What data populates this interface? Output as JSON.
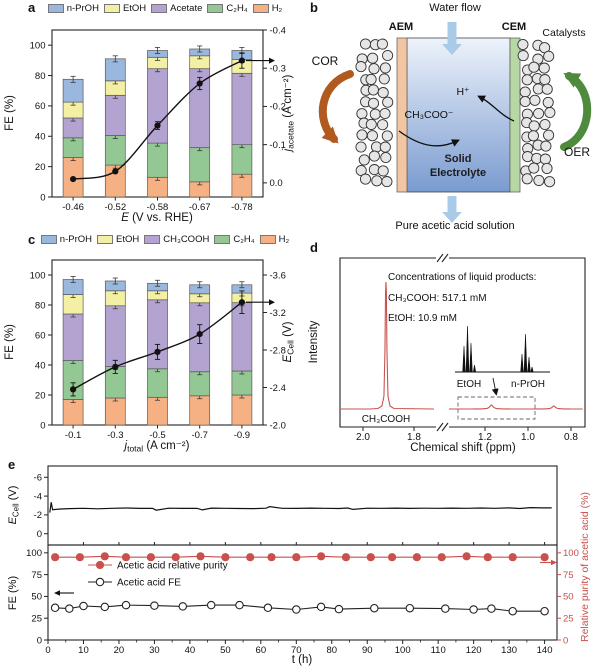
{
  "colors": {
    "n-PrOH": "#9ab7dd",
    "EtOH": "#f3efa4",
    "Acetate": "#b3a3d0",
    "CH₃COOH": "#b3a3d0",
    "C₂H₄": "#93c793",
    "H₂": "#f5b183",
    "line": "#111111",
    "nmr_red": "#c9534f",
    "purity_red": "#c9504c",
    "aem": "#f2c6a2",
    "cem": "#b7d8a5",
    "electrolyte_top": "#eef3fb",
    "electrolyte_bottom": "#7a9bd0",
    "water_arrow": "#a9cbe8",
    "cor_arrow": "#b05a20",
    "oer_arrow": "#4e8b3c",
    "catalyst_fill": "#e6e6e6"
  },
  "panels": {
    "a": {
      "letter": "a"
    },
    "b": {
      "letter": "b",
      "water_flow": "Water flow",
      "aem": "AEM",
      "cem": "CEM",
      "catalysts": "Catalysts",
      "cor": "COR",
      "oer": "OER",
      "h_plus": "H⁺",
      "acetate_ion": "CH₃COO⁻",
      "electrolyte_line1": "Solid",
      "electrolyte_line2": "Electrolyte",
      "bottom_label": "Pure acetic acid solution"
    },
    "c": {
      "letter": "c"
    },
    "d": {
      "letter": "d"
    },
    "e": {
      "letter": "e"
    }
  },
  "chart_data": [
    {
      "id": "panel-a",
      "type": "bar",
      "categories": [
        -0.46,
        -0.52,
        -0.58,
        -0.67,
        -0.78
      ],
      "xlabel_parts": {
        "sym": "E",
        "sub": "",
        "rest": " (V vs. RHE)"
      },
      "ylabel": "FE (%)",
      "ylim": [
        0,
        110
      ],
      "yticks": [
        0,
        20,
        40,
        60,
        80,
        100
      ],
      "legend": [
        "n-PrOH",
        "EtOH",
        "Acetate",
        "C₂H₄",
        "H₂"
      ],
      "series": [
        {
          "name": "H₂",
          "values": [
            26,
            21,
            13,
            10,
            15
          ]
        },
        {
          "name": "C₂H₄",
          "values": [
            13,
            19.5,
            22.5,
            22.5,
            19.5
          ]
        },
        {
          "name": "Acetate",
          "values": [
            13,
            26.5,
            49,
            52,
            47
          ]
        },
        {
          "name": "EtOH",
          "values": [
            10.5,
            9.5,
            7.5,
            8.5,
            9
          ]
        },
        {
          "name": "n-PrOH",
          "values": [
            15,
            14.5,
            4.5,
            4.5,
            6
          ]
        }
      ],
      "bar_err": 2,
      "line_series": {
        "name": "j_acetate",
        "values": [
          -0.01,
          -0.03,
          -0.15,
          -0.26,
          -0.32
        ],
        "err": [
          0,
          0,
          0.01,
          0.016,
          0.02
        ]
      },
      "y2label_parts": {
        "sym": "j",
        "sub": "acetate",
        "rest": " (A cm⁻²)"
      },
      "y2ticks": [
        -0.4,
        -0.3,
        -0.2,
        -0.1,
        0.0
      ],
      "y2lim": [
        0.037,
        -0.4
      ]
    },
    {
      "id": "panel-c",
      "type": "bar",
      "categories": [
        -0.1,
        -0.3,
        -0.5,
        -0.7,
        -0.9
      ],
      "xlabel_parts": {
        "sym": "j",
        "sub": "total",
        "rest": " (A cm⁻²)"
      },
      "ylabel": "FE (%)",
      "ylim": [
        0,
        110
      ],
      "yticks": [
        0,
        20,
        40,
        60,
        80,
        100
      ],
      "legend": [
        "n-PrOH",
        "EtOH",
        "CH₃COOH",
        "C₂H₄",
        "H₂"
      ],
      "series": [
        {
          "name": "H₂",
          "values": [
            17,
            18,
            18.5,
            19.5,
            20
          ]
        },
        {
          "name": "C₂H₄",
          "values": [
            26,
            21,
            19,
            16,
            16
          ]
        },
        {
          "name": "CH₃COOH",
          "values": [
            31,
            40.5,
            46,
            46,
            45.5
          ]
        },
        {
          "name": "EtOH",
          "values": [
            13,
            10,
            6,
            6,
            6.5
          ]
        },
        {
          "name": "n-PrOH",
          "values": [
            10,
            6.5,
            5,
            6,
            5.5
          ]
        }
      ],
      "bar_err": 2,
      "line_series": {
        "name": "E_Cell",
        "values": [
          -2.38,
          -2.62,
          -2.78,
          -2.97,
          -3.31
        ],
        "err": [
          0.07,
          0.07,
          0.08,
          0.1,
          0.12
        ]
      },
      "y2label_parts": {
        "sym": "E",
        "sub": "Cell",
        "rest": " (V)"
      },
      "y2ticks": [
        -3.6,
        -3.2,
        -2.8,
        -2.4,
        -2.0
      ],
      "y2lim": [
        -2.0,
        -3.76
      ]
    },
    {
      "id": "panel-d",
      "type": "nmr",
      "xlabel": "Chemical shift (ppm)",
      "ylabel": "Intensity",
      "xticks_left": [
        2.0,
        1.8
      ],
      "xticks_right": [
        1.2,
        1.0,
        0.8
      ],
      "annotations": {
        "conc_title": "Concentrations of liquid products:",
        "conc_line1": "CH₃COOH: 517.1 mM",
        "conc_line2": "EtOH: 10.9 mM",
        "main_peak_label": "CH₃COOH",
        "inset_label_left": "EtOH",
        "inset_label_right": "n-PrOH"
      },
      "main_peak_ppm": 1.91,
      "inset_peak_ppm": {
        "etoh": 1.17,
        "nproh": 0.88
      }
    },
    {
      "id": "panel-e",
      "type": "line",
      "xlabel": "t (h)",
      "xticks": [
        0,
        10,
        20,
        30,
        40,
        50,
        60,
        70,
        80,
        90,
        100,
        110,
        120,
        130,
        140
      ],
      "xlim": [
        0,
        143.5
      ],
      "top": {
        "ylabel_parts": {
          "sym": "E",
          "sub": "Cell",
          "rest": " (V)"
        },
        "yticks": [
          0,
          -2,
          -4,
          -6
        ],
        "ylim": [
          1.2,
          -7.2
        ],
        "trace_t": [
          0.5,
          0.9,
          1.3,
          3,
          6,
          10,
          14,
          18,
          22,
          26,
          29.5,
          30.5,
          34,
          38,
          42,
          43.5,
          46,
          50,
          54,
          58,
          61.5,
          62.5,
          66,
          70,
          74,
          78,
          82,
          84.5,
          86,
          90,
          94,
          98,
          102,
          106,
          110,
          114,
          118,
          122,
          126,
          130,
          133,
          136,
          139,
          142
        ],
        "trace_v": [
          -2.25,
          -3.35,
          -2.55,
          -2.62,
          -2.67,
          -2.7,
          -2.65,
          -2.7,
          -2.73,
          -2.69,
          -2.7,
          -2.5,
          -2.71,
          -2.69,
          -2.7,
          -2.53,
          -2.72,
          -2.7,
          -2.68,
          -2.67,
          -2.71,
          -2.88,
          -2.7,
          -2.69,
          -2.72,
          -2.7,
          -2.68,
          -2.73,
          -2.58,
          -2.71,
          -2.7,
          -2.72,
          -2.69,
          -2.71,
          -2.7,
          -2.72,
          -2.7,
          -2.73,
          -2.7,
          -2.74,
          -2.68,
          -2.78,
          -2.74,
          -2.75
        ]
      },
      "bottom": {
        "ylabel": "FE (%)",
        "yticks": [
          0,
          25,
          50,
          75,
          100
        ],
        "ylim": [
          0,
          109
        ],
        "y2label": "Relative purity of acetic acid (%)",
        "y2ticks": [
          0,
          25,
          50,
          75,
          100
        ],
        "series": [
          {
            "name": "Acetic acid relative purity",
            "marker": "filled",
            "t": [
              2,
              9,
              16,
              22,
              29,
              36,
              43,
              50,
              57,
              63,
              70,
              77,
              84,
              91,
              97,
              104,
              111,
              118,
              124,
              131,
              140
            ],
            "values": [
              95,
              95,
              96,
              95,
              95,
              95,
              96,
              95,
              95,
              95,
              95,
              96,
              95,
              95,
              95,
              95,
              95,
              96,
              95,
              95,
              95
            ]
          },
          {
            "name": "Acetic acid FE",
            "marker": "open",
            "t": [
              2,
              6,
              10,
              16,
              22,
              30,
              38,
              46,
              54,
              62,
              70,
              77,
              82,
              92,
              102,
              112,
              120,
              125,
              131,
              140
            ],
            "values": [
              37,
              36,
              39,
              38,
              40,
              39.5,
              38.5,
              40,
              40,
              37,
              35,
              38,
              35.5,
              36.5,
              36.5,
              36,
              35,
              36,
              33,
              33
            ]
          }
        ]
      }
    }
  ]
}
